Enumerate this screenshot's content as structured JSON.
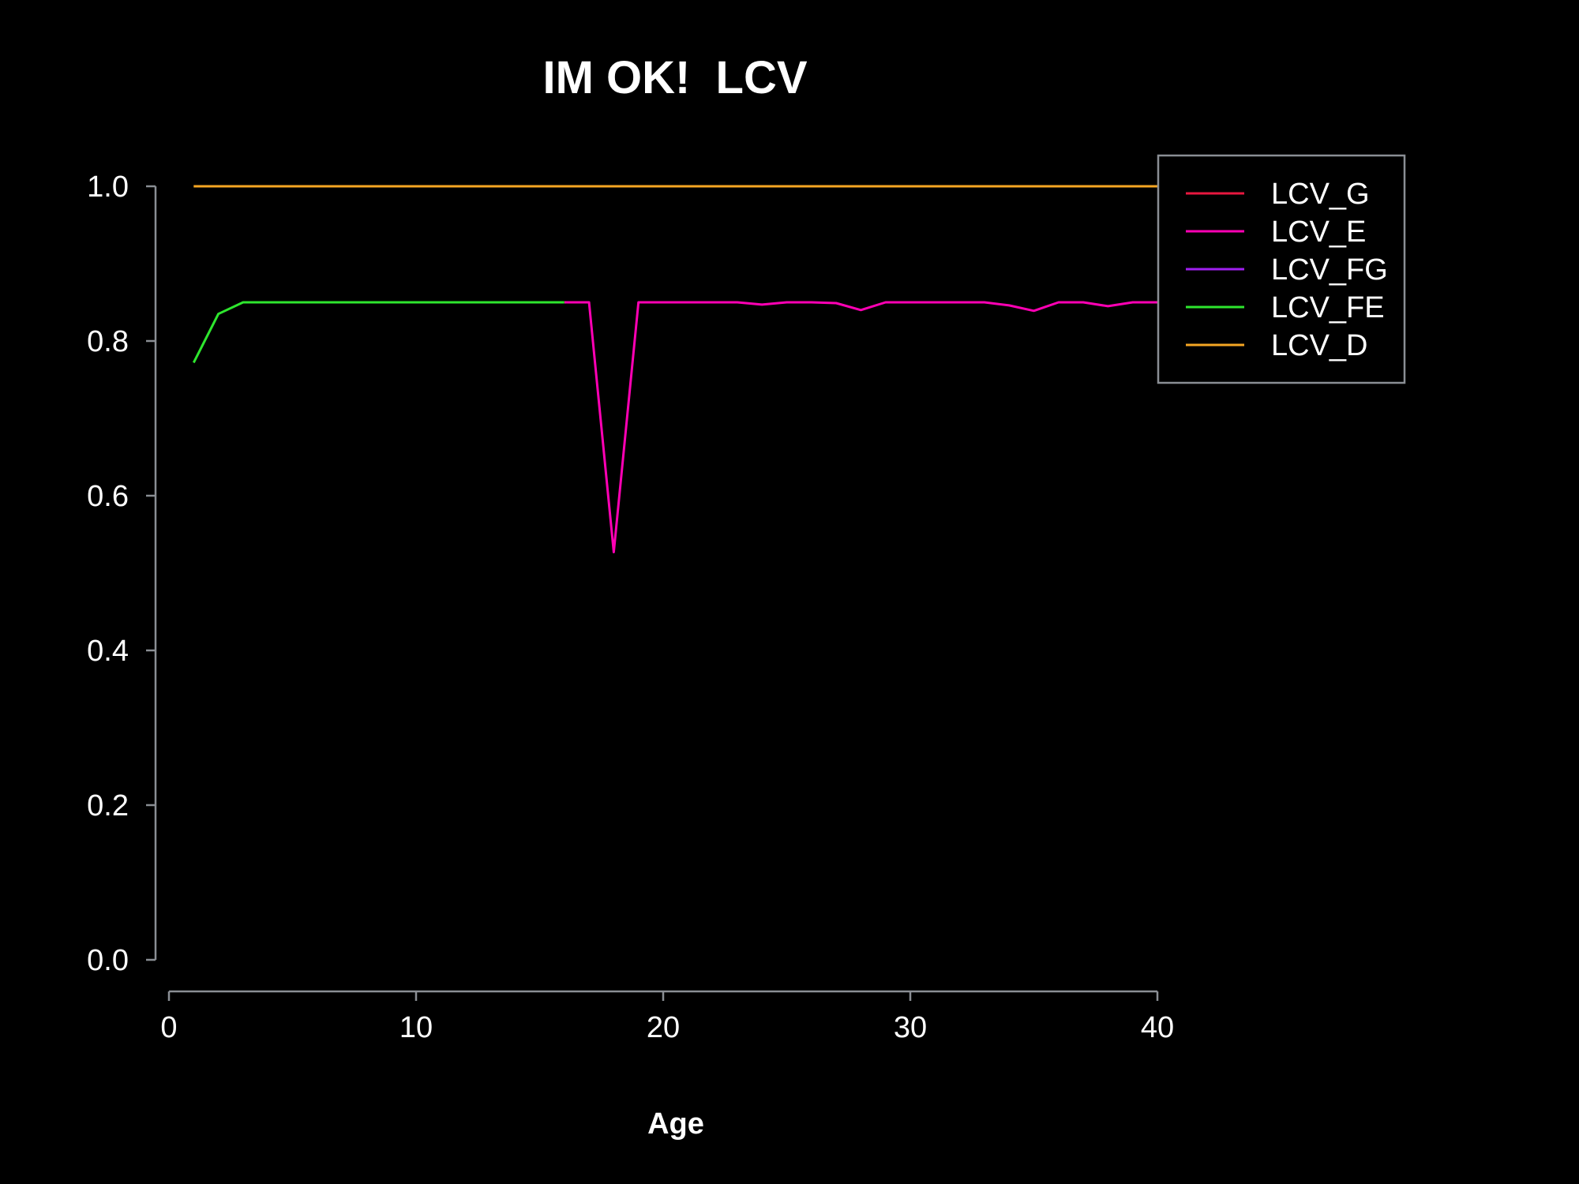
{
  "chart_data": {
    "type": "line",
    "title": "IM OK!  LCV",
    "xlabel": "Age",
    "ylabel": "",
    "xlim": [
      0,
      40
    ],
    "ylim": [
      0,
      1
    ],
    "xticks": [
      0,
      10,
      20,
      30,
      40
    ],
    "yticks": [
      "0.0",
      "0.2",
      "0.4",
      "0.6",
      "0.8",
      "1.0"
    ],
    "grid": false,
    "legend_position": "top-right",
    "background": "#000000",
    "axis_color": "#8a8e94",
    "series": [
      {
        "name": "LCV_G",
        "color": "#e8173f",
        "x": [],
        "y": []
      },
      {
        "name": "LCV_E",
        "color": "#ff00b4",
        "x": [
          16,
          17,
          18,
          19,
          20,
          21,
          22,
          23,
          24,
          25,
          26,
          27,
          28,
          29,
          30,
          31,
          32,
          33,
          34,
          35,
          36,
          37,
          38,
          39,
          40
        ],
        "y": [
          0.85,
          0.85,
          0.527,
          0.85,
          0.85,
          0.85,
          0.85,
          0.85,
          0.847,
          0.85,
          0.85,
          0.849,
          0.84,
          0.85,
          0.85,
          0.85,
          0.85,
          0.85,
          0.846,
          0.839,
          0.85,
          0.85,
          0.845,
          0.85,
          0.85
        ]
      },
      {
        "name": "LCV_FG",
        "color": "#a020f0",
        "x": [],
        "y": []
      },
      {
        "name": "LCV_FE",
        "color": "#2ee62e",
        "x": [
          1,
          2,
          3,
          4,
          5,
          6,
          7,
          8,
          9,
          10,
          11,
          12,
          13,
          14,
          15,
          16
        ],
        "y": [
          0.772,
          0.835,
          0.85,
          0.85,
          0.85,
          0.85,
          0.85,
          0.85,
          0.85,
          0.85,
          0.85,
          0.85,
          0.85,
          0.85,
          0.85,
          0.85
        ]
      },
      {
        "name": "LCV_D",
        "color": "#f5a623",
        "x": [
          1,
          40
        ],
        "y": [
          1.0,
          1.0
        ]
      }
    ]
  }
}
